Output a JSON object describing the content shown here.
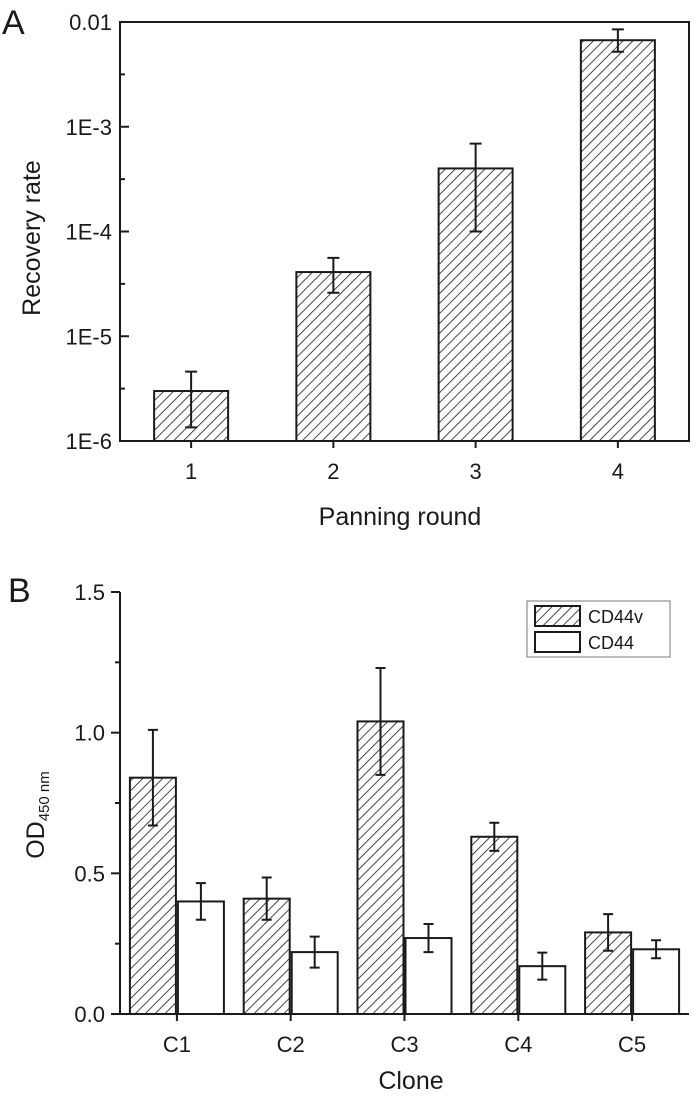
{
  "colors": {
    "ink": "#1a1a1a",
    "hatch_fill": "#ffffff",
    "open_fill": "#ffffff"
  },
  "chart_data": [
    {
      "panel_label": "A",
      "type": "bar",
      "yscale": "log",
      "ylim": [
        1e-06,
        0.01
      ],
      "y_tick_values": [
        1e-06,
        1e-05,
        0.0001,
        0.001,
        0.01
      ],
      "y_tick_labels": [
        "1E-6",
        "1E-5",
        "1E-4",
        "1E-3",
        "0.01"
      ],
      "categories": [
        "1",
        "2",
        "3",
        "4"
      ],
      "values": [
        3e-06,
        4.1e-05,
        0.0004,
        0.0067
      ],
      "error_low": [
        1.35e-06,
        2.6e-05,
        0.0001,
        0.0052
      ],
      "error_high": [
        4.6e-06,
        5.6e-05,
        0.00069,
        0.0085
      ],
      "fill": "hatched",
      "xlabel": "Panning round",
      "ylabel": "Recovery rate",
      "grid": false
    },
    {
      "panel_label": "B",
      "type": "bar",
      "yscale": "linear",
      "ylim": [
        0,
        1.5
      ],
      "y_tick_values": [
        0,
        0.5,
        1.0,
        1.5
      ],
      "y_tick_labels": [
        "0.0",
        "0.5",
        "1.0",
        "1.5"
      ],
      "categories": [
        "C1",
        "C2",
        "C3",
        "C4",
        "C5"
      ],
      "series": [
        {
          "name": "CD44v",
          "fill": "hatched",
          "values": [
            0.84,
            0.41,
            1.04,
            0.63,
            0.29
          ],
          "errors": [
            0.17,
            0.075,
            0.19,
            0.05,
            0.065
          ]
        },
        {
          "name": "CD44",
          "fill": "open",
          "values": [
            0.4,
            0.22,
            0.27,
            0.17,
            0.23
          ],
          "errors": [
            0.065,
            0.055,
            0.05,
            0.048,
            0.032
          ]
        }
      ],
      "xlabel": "Clone",
      "ylabel_main": "OD",
      "ylabel_sub": "450 nm",
      "legend_position": "top-right",
      "grid": false
    }
  ]
}
